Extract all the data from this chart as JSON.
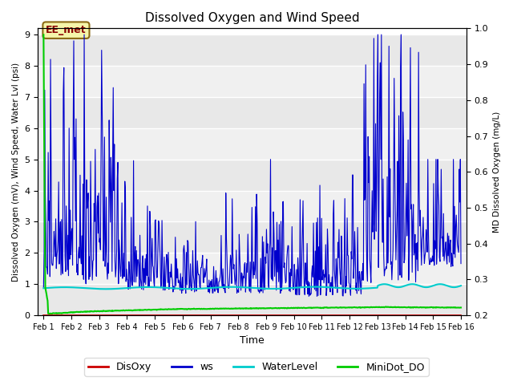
{
  "title": "Dissolved Oxygen and Wind Speed",
  "xlabel": "Time",
  "ylabel_left": "Dissolved Oxygen (mV), Wind Speed, Water Lvl (psi)",
  "ylabel_right": "MD Dissolved Oxygen (mg/L)",
  "ylim_left": [
    0.0,
    9.2
  ],
  "ylim_right": [
    0.2,
    1.0
  ],
  "annotation_text": "EE_met",
  "background_color": "#ffffff",
  "band_colors": [
    "#e8e8e8",
    "#f5f5f5"
  ],
  "grid_color": "#ffffff",
  "line_colors": {
    "DisOxy": "#cc0000",
    "ws": "#0000cc",
    "WaterLevel": "#00cccc",
    "MiniDot_DO": "#00cc00"
  },
  "line_widths": {
    "DisOxy": 1.2,
    "ws": 0.8,
    "WaterLevel": 1.5,
    "MiniDot_DO": 1.5
  },
  "xtick_labels": [
    "Feb 1",
    "Feb 2",
    "Feb 3",
    "Feb 4",
    "Feb 5",
    "Feb 6",
    "Feb 7",
    "Feb 8",
    "Feb 9",
    "Feb 10",
    "Feb 11",
    "Feb 12",
    "Feb 13",
    "Feb 14",
    "Feb 15",
    "Feb 16"
  ],
  "yticks_left": [
    0.0,
    1.0,
    2.0,
    3.0,
    4.0,
    5.0,
    6.0,
    7.0,
    8.0,
    9.0
  ],
  "yticks_right": [
    0.2,
    0.3,
    0.4,
    0.5,
    0.6,
    0.7,
    0.8,
    0.9,
    1.0
  ]
}
